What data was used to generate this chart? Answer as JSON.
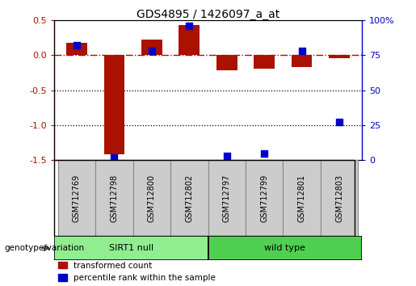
{
  "title": "GDS4895 / 1426097_a_at",
  "samples": [
    "GSM712769",
    "GSM712798",
    "GSM712800",
    "GSM712802",
    "GSM712797",
    "GSM712799",
    "GSM712801",
    "GSM712803"
  ],
  "red_values": [
    0.18,
    -1.42,
    0.22,
    0.43,
    -0.22,
    -0.2,
    -0.17,
    -0.05
  ],
  "blue_values": [
    82,
    2,
    78,
    96,
    3,
    5,
    78,
    27
  ],
  "groups": [
    {
      "label": "SIRT1 null",
      "start": 0,
      "end": 4,
      "color": "#90ee90"
    },
    {
      "label": "wild type",
      "start": 4,
      "end": 8,
      "color": "#50d050"
    }
  ],
  "group_row_label": "genotype/variation",
  "red_color": "#aa1100",
  "blue_color": "#0000cc",
  "ylim_left": [
    -1.5,
    0.5
  ],
  "ylim_right": [
    0,
    100
  ],
  "yticks_left": [
    -1.5,
    -1.0,
    -0.5,
    0.0,
    0.5
  ],
  "yticks_right": [
    0,
    25,
    50,
    75,
    100
  ],
  "ytick_labels_right": [
    "0",
    "25",
    "50",
    "75",
    "100%"
  ],
  "legend_red": "transformed count",
  "legend_blue": "percentile rank within the sample",
  "hline_y": 0,
  "dotted_lines": [
    -0.5,
    -1.0
  ],
  "bar_width": 0.55,
  "dot_size": 35,
  "sample_box_color": "#cccccc",
  "sample_box_edge": "#888888"
}
